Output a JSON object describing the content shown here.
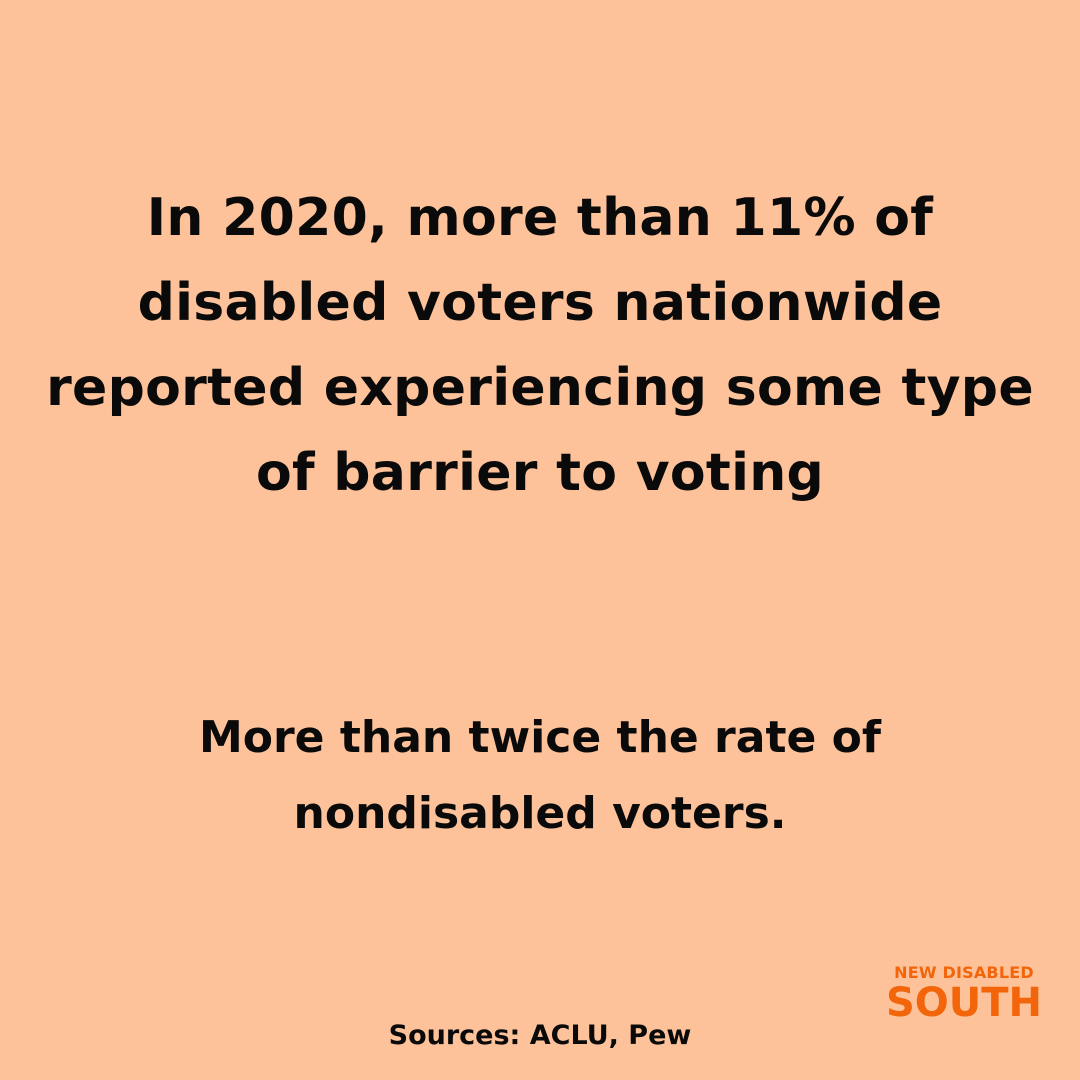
{
  "background_color": "#fec29a",
  "text_color": "#0a0a0a",
  "brand_color": "#f2650a",
  "headline": {
    "lines": [
      "In 2020, more than 11% of",
      "disabled voters nationwide",
      "reported experiencing some type",
      "of barrier to voting"
    ]
  },
  "subline": {
    "lines": [
      "More than twice the rate of",
      "nondisabled voters."
    ]
  },
  "sources": "Sources: ACLU, Pew",
  "logo": {
    "top": "NEW DISABLED",
    "bottom": "SOUTH"
  }
}
